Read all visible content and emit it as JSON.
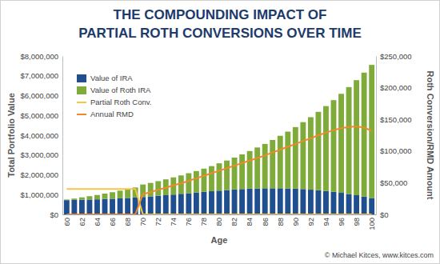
{
  "chart_data": {
    "type": "bar",
    "stacked": true,
    "title": [
      "THE COMPOUNDING IMPACT OF",
      "PARTIAL ROTH CONVERSIONS OVER TIME"
    ],
    "x_label": "Age",
    "y_label": "Total Portfolio Value",
    "y2_label": "Roth Conversion/RMD Amount",
    "annotations": [
      "© Michael Kitces, www.kitces.com"
    ],
    "legend": "upper left",
    "grid": false,
    "categories": [
      "60",
      null,
      "62",
      null,
      "64",
      null,
      "66",
      null,
      "68",
      null,
      "70",
      null,
      "72",
      null,
      "74",
      null,
      "76",
      null,
      "78",
      null,
      "80",
      null,
      "82",
      null,
      "84",
      null,
      "86",
      null,
      "88",
      null,
      "90",
      null,
      "92",
      null,
      "94",
      null,
      "96",
      null,
      "98",
      null,
      "100"
    ],
    "ylim": [
      0,
      8000000
    ],
    "yticks": [
      {
        "value": 0,
        "label": "$0"
      },
      {
        "value": 1000000,
        "label": "$1,000,000"
      },
      {
        "value": 2000000,
        "label": "$2,000,000"
      },
      {
        "value": 3000000,
        "label": "$3,000,000"
      },
      {
        "value": 4000000,
        "label": "$4,000,000"
      },
      {
        "value": 5000000,
        "label": "$5,000,000"
      },
      {
        "value": 6000000,
        "label": "$6,000,000"
      },
      {
        "value": 7000000,
        "label": "$7,000,000"
      },
      {
        "value": 8000000,
        "label": "$8,000,000"
      }
    ],
    "y2lim": [
      0,
      250000
    ],
    "y2ticks": [
      {
        "value": 0,
        "label": "$0"
      },
      {
        "value": 50000,
        "label": "$50,000"
      },
      {
        "value": 100000,
        "label": "$100,000"
      },
      {
        "value": 150000,
        "label": "$150,000"
      },
      {
        "value": 200000,
        "label": "$200,000"
      },
      {
        "value": 250000,
        "label": "$250,000"
      }
    ],
    "series": [
      {
        "name": "Value of IRA",
        "type": "bar",
        "color": "#1f4f8f",
        "values": [
          720000,
          730000,
          740000,
          750000,
          760000,
          780000,
          790000,
          810000,
          830000,
          850000,
          880000,
          910000,
          940000,
          970000,
          1000000,
          1040000,
          1070000,
          1100000,
          1140000,
          1170000,
          1200000,
          1230000,
          1260000,
          1280000,
          1300000,
          1310000,
          1320000,
          1320000,
          1320000,
          1310000,
          1300000,
          1280000,
          1250000,
          1220000,
          1180000,
          1140000,
          1090000,
          1030000,
          970000,
          900000,
          830000
        ]
      },
      {
        "name": "Value of Roth IRA",
        "type": "bar",
        "color": "#7fab3b",
        "values": [
          30000,
          70000,
          120000,
          170000,
          220000,
          270000,
          330000,
          390000,
          450000,
          510000,
          630000,
          680000,
          740000,
          800000,
          870000,
          930000,
          1010000,
          1090000,
          1170000,
          1270000,
          1380000,
          1490000,
          1610000,
          1750000,
          1900000,
          2070000,
          2240000,
          2440000,
          2650000,
          2870000,
          3110000,
          3380000,
          3660000,
          3960000,
          4290000,
          4630000,
          5000000,
          5400000,
          5810000,
          6260000,
          6720000
        ]
      },
      {
        "name": "Partial Roth Conv.",
        "type": "line",
        "axis": "y2",
        "color": "#f5c544",
        "values": [
          40000,
          40000,
          40000,
          40000,
          40000,
          40000,
          40000,
          40000,
          40000,
          40000,
          0,
          0,
          0,
          0,
          0,
          0,
          0,
          0,
          0,
          0,
          0,
          0,
          0,
          0,
          0,
          0,
          0,
          0,
          0,
          0,
          0,
          0,
          0,
          0,
          0,
          0,
          0,
          0,
          0,
          0,
          0
        ]
      },
      {
        "name": "Annual RMD",
        "type": "line",
        "axis": "y2",
        "color": "#ef8a2a",
        "values": [
          0,
          0,
          0,
          0,
          0,
          0,
          0,
          0,
          0,
          0,
          32000,
          35000,
          39000,
          42000,
          46000,
          49000,
          53000,
          57000,
          61000,
          65000,
          69000,
          73000,
          77000,
          81000,
          85000,
          89000,
          93000,
          98000,
          102000,
          107000,
          111000,
          116000,
          120000,
          125000,
          129000,
          133000,
          136000,
          138000,
          139000,
          137000,
          132000
        ]
      }
    ]
  }
}
